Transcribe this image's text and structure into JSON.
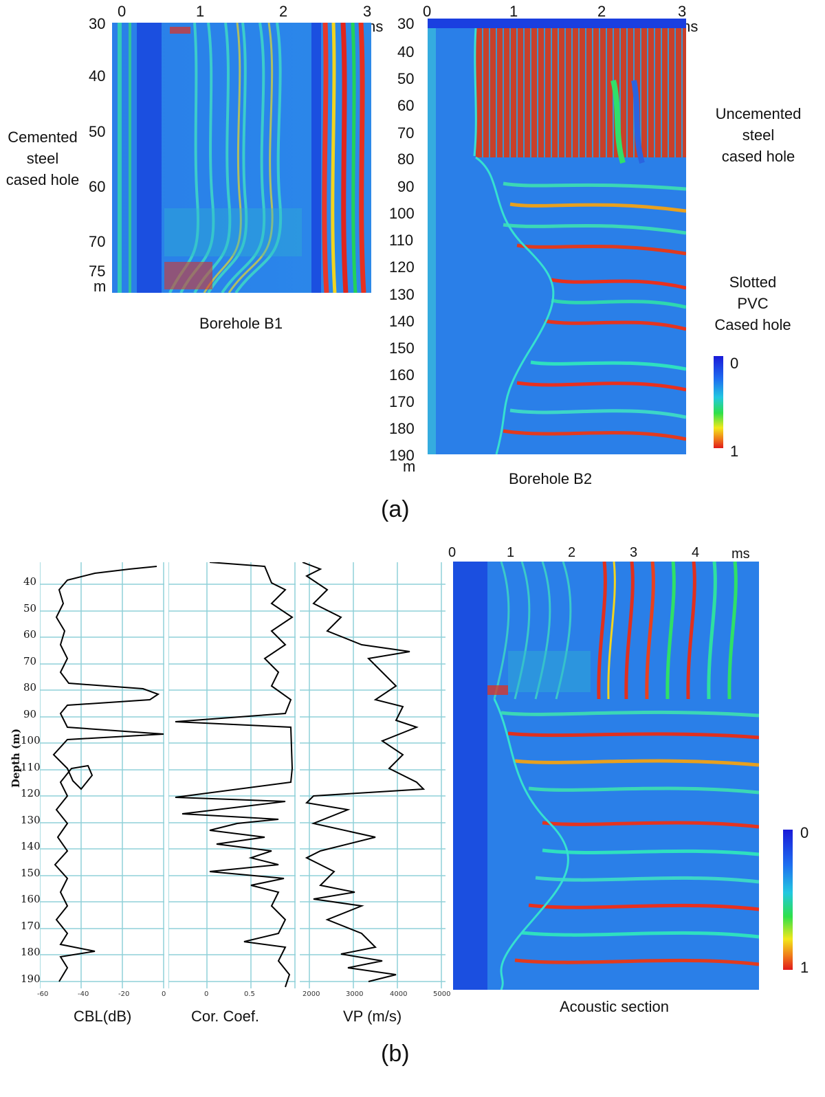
{
  "panel_a": {
    "b1": {
      "x_ticks": [
        "0",
        "1",
        "2",
        "3 ms"
      ],
      "depth_ticks": [
        "30",
        "40",
        "50",
        "60",
        "70",
        "75"
      ],
      "depth_unit": "m",
      "title": "Borehole B1",
      "side_label": [
        "Cemented",
        "steel",
        "cased hole"
      ]
    },
    "b2": {
      "x_ticks": [
        "0",
        "1",
        "2",
        "3 ms"
      ],
      "depth_ticks": [
        "30",
        "40",
        "50",
        "60",
        "70",
        "80",
        "90",
        "100",
        "110",
        "120",
        "130",
        "140",
        "150",
        "160",
        "170",
        "180",
        "190"
      ],
      "depth_unit": "m",
      "title": "Borehole B2",
      "label_top": [
        "Uncemented",
        "steel",
        "cased hole"
      ],
      "label_bottom": [
        "Slotted",
        "PVC",
        "Cased hole"
      ]
    },
    "colorbar": {
      "top": "0",
      "bottom": "1"
    },
    "caption": "(a)"
  },
  "panel_b": {
    "depth_axis_label": "Depth (m)",
    "depth_ticks": [
      "40",
      "50",
      "60",
      "70",
      "80",
      "90",
      "100",
      "110",
      "120",
      "130",
      "140",
      "150",
      "160",
      "170",
      "180",
      "190"
    ],
    "cbl": {
      "label": "CBL(dB)",
      "ticks": [
        "-60",
        "-40",
        "-20",
        "0"
      ]
    },
    "cor": {
      "label": "Cor. Coef.",
      "ticks": [
        "0",
        "0.5"
      ]
    },
    "vp": {
      "label": "VP (m/s)",
      "ticks": [
        "2000",
        "3000",
        "4000",
        "5000"
      ]
    },
    "acoustic": {
      "x_ticks": [
        "0",
        "1",
        "2",
        "3",
        "4",
        "ms"
      ],
      "title": "Acoustic section"
    },
    "colorbar": {
      "top": "0",
      "bottom": "1"
    },
    "caption": "(b)"
  },
  "colors": {
    "background_blue": "#1b4fe0",
    "grid": "#8fd0d8",
    "trace": "#000000"
  }
}
